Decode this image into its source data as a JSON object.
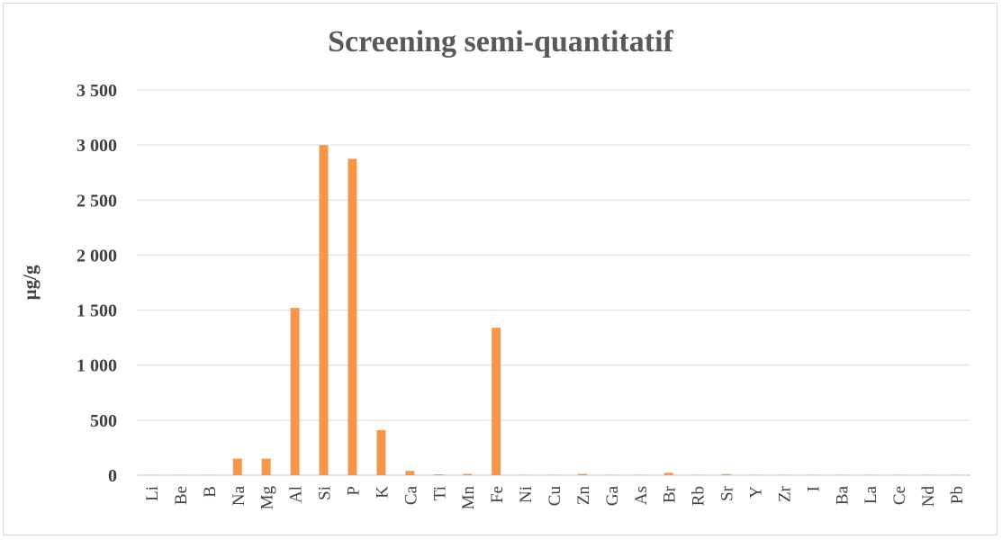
{
  "chart_data": {
    "type": "bar",
    "title": "Screening semi-quantitatif",
    "xlabel": "",
    "ylabel": "µg/g",
    "ylim": [
      0,
      3500
    ],
    "yticks": [
      0,
      500,
      1000,
      1500,
      2000,
      2500,
      3000,
      3500
    ],
    "ytick_labels": [
      "0",
      "500",
      "1 000",
      "1 500",
      "2 000",
      "2 500",
      "3 000",
      "3 500"
    ],
    "grid": true,
    "legend": "none",
    "bar_color": "#F79646",
    "categories": [
      "Li",
      "Be",
      "B",
      "Na",
      "Mg",
      "Al",
      "Si",
      "P",
      "K",
      "Ca",
      "Ti",
      "Mn",
      "Fe",
      "Ni",
      "Cu",
      "Zn",
      "Ga",
      "As",
      "Br",
      "Rb",
      "Sr",
      "Y",
      "Zr",
      "I",
      "Ba",
      "La",
      "Ce",
      "Nd",
      "Pb"
    ],
    "values": [
      2,
      2,
      2,
      150,
      150,
      1520,
      3000,
      2875,
      410,
      40,
      8,
      12,
      1340,
      3,
      3,
      12,
      3,
      3,
      22,
      3,
      10,
      3,
      3,
      3,
      3,
      3,
      3,
      3,
      3
    ]
  }
}
